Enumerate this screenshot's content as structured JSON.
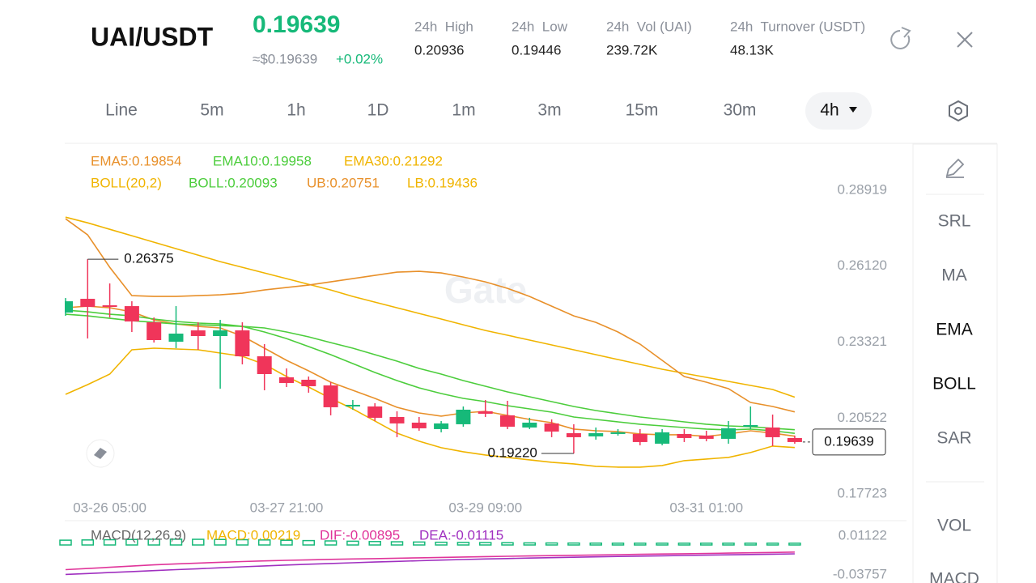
{
  "header": {
    "pair": "UAI/USDT",
    "price": 0.19639,
    "price_fiat": "≈$0.19639",
    "change": "+0.02%",
    "stats": [
      {
        "label": "24h  High",
        "value": 0.20936
      },
      {
        "label": "24h  Low",
        "value": 0.19446
      },
      {
        "label": "24h  Vol (UAI)",
        "value": "239.72K"
      },
      {
        "label": "24h  Turnover (USDT)",
        "value": "48.13K"
      }
    ]
  },
  "tabs": [
    "Line",
    "5m",
    "1h",
    "1D",
    "1m",
    "3m",
    "15m",
    "30m",
    "4h"
  ],
  "side_menu": [
    "SRL",
    "MA",
    "EMA",
    "BOLL",
    "SAR",
    "VOL",
    "MACD"
  ],
  "watermark": "Gate",
  "chart_data": [
    {
      "type": "candlestick",
      "categories": [
        null,
        null,
        "03-26 05:00",
        null,
        null,
        null,
        null,
        null,
        null,
        null,
        "03-27 21:00",
        null,
        null,
        null,
        null,
        null,
        null,
        null,
        null,
        "03-29 09:00",
        null,
        null,
        null,
        null,
        null,
        null,
        null,
        null,
        null,
        "03-31 01:00",
        null,
        null,
        null,
        null
      ],
      "open": [
        0.24408,
        0.24915,
        0.24676,
        0.24646,
        0.2405,
        0.23335,
        0.23752,
        0.23544,
        0.23752,
        0.22798,
        0.22023,
        0.21934,
        0.21726,
        0.2095,
        0.2095,
        0.20563,
        0.20354,
        0.20116,
        0.20295,
        0.20772,
        0.20623,
        0.20175,
        0.20325,
        0.19967,
        0.19848,
        0.19937,
        0.19937,
        0.19579,
        0.19937,
        0.19877,
        0.19758,
        0.20205,
        0.20175,
        0.19788
      ],
      "high": [
        0.24944,
        0.26375,
        0.25481,
        0.24825,
        0.24229,
        0.24646,
        0.2405,
        0.2414,
        0.2405,
        0.23246,
        0.22351,
        0.22053,
        0.21845,
        0.21189,
        0.2107,
        0.20772,
        0.20563,
        0.20414,
        0.2095,
        0.21189,
        0.21159,
        0.20533,
        0.20473,
        0.20295,
        0.20175,
        0.20116,
        0.20116,
        0.20116,
        0.20116,
        0.20056,
        0.20414,
        0.2095,
        0.20652,
        0.19877
      ],
      "low": [
        0.24289,
        0.23454,
        0.24229,
        0.23693,
        0.23305,
        0.23097,
        0.23037,
        0.21606,
        0.225,
        0.21547,
        0.21666,
        0.21457,
        0.20623,
        0.20831,
        0.20414,
        0.19818,
        0.20056,
        0.19997,
        0.20205,
        0.20563,
        0.20116,
        0.20116,
        0.19818,
        {
          "value": 0.1922,
          "label": "0.19220"
        },
        0.19728,
        0.19877,
        0.1952,
        0.1952,
        0.19639,
        0.19669,
        0.19579,
        0.20116,
        0.1949,
        0.19579
      ],
      "close": [
        0.24825,
        0.24617,
        0.24617,
        0.2408,
        0.23395,
        0.23633,
        0.23544,
        0.23752,
        0.22798,
        0.22143,
        0.21815,
        0.21696,
        0.20921,
        0.2101,
        0.20533,
        0.20325,
        0.20146,
        0.20325,
        0.20831,
        0.20682,
        0.20205,
        0.20354,
        0.20026,
        0.19818,
        0.19967,
        0.19997,
        0.19639,
        0.19997,
        0.19788,
        0.19758,
        0.20146,
        0.20265,
        0.19818,
        0.19639
      ],
      "up_color": "#16b979",
      "down_color": "#f0355a",
      "ylim": [
        0.1743,
        0.2936
      ],
      "yticks": [
        0.28919,
        {
          "value": 0.2612,
          "label": "0.26120"
        },
        0.23321,
        0.20522,
        0.17723
      ],
      "legend_title": "BOLL(20,2)",
      "legend_title_color": "#f0b400",
      "series": [
        {
          "name": "EMA5:0.19854",
          "color": "#e8902a",
          "values": [
            0.24586,
            0.24645,
            0.24586,
            0.24437,
            0.24139,
            0.2399,
            0.239,
            0.23841,
            0.23543,
            0.23096,
            0.22649,
            0.22261,
            0.21844,
            0.21546,
            0.21248,
            0.2092,
            0.20712,
            0.20593,
            0.20712,
            0.20771,
            0.20622,
            0.20473,
            0.20354,
            0.20116,
            0.20056,
            0.20026,
            0.19937,
            0.19907,
            0.19907,
            0.19848,
            0.19937,
            0.20056,
            0.19967,
            0.19854
          ]
        },
        {
          "name": "EMA10:0.19958",
          "color": "#4ccd3c",
          "values": [
            0.24496,
            0.24437,
            0.24347,
            0.24288,
            0.24169,
            0.24079,
            0.2402,
            0.2399,
            0.239,
            0.23692,
            0.23453,
            0.23155,
            0.22857,
            0.2253,
            0.22202,
            0.21904,
            0.21636,
            0.21427,
            0.21248,
            0.21129,
            0.2098,
            0.20861,
            0.20742,
            0.20563,
            0.20473,
            0.20384,
            0.20295,
            0.20235,
            0.20175,
            0.20116,
            0.20086,
            0.20116,
            0.20056,
            0.19958
          ]
        },
        {
          "name": "EMA30:0.21292",
          "color": "#f0b400",
          "values": [
            0.27923,
            0.27715,
            0.27476,
            0.27238,
            0.27,
            0.26761,
            0.26523,
            0.26284,
            0.26076,
            0.25867,
            0.25659,
            0.2545,
            0.25241,
            0.25003,
            0.24794,
            0.24586,
            0.24377,
            0.24169,
            0.2396,
            0.23751,
            0.23573,
            0.23394,
            0.23215,
            0.23036,
            0.22857,
            0.22679,
            0.225,
            0.22321,
            0.22172,
            0.22023,
            0.21874,
            0.21725,
            0.21576,
            0.21292
          ]
        },
        {
          "name": "BOLL:0.20093",
          "color": "#4ccd3c",
          "values": [
            0.24347,
            0.24288,
            0.24198,
            0.24109,
            0.24049,
            0.2399,
            0.2396,
            0.2393,
            0.239,
            0.23841,
            0.23692,
            0.23513,
            0.23304,
            0.23096,
            0.22857,
            0.22619,
            0.22351,
            0.22142,
            0.21904,
            0.21695,
            0.21487,
            0.21308,
            0.21129,
            0.2095,
            0.20801,
            0.20682,
            0.20563,
            0.20473,
            0.20384,
            0.20295,
            0.20235,
            0.20205,
            0.20146,
            0.20093
          ]
        },
        {
          "name": "UB:0.20751",
          "color": "#e8902a",
          "values": [
            0.27864,
            0.27268,
            0.26076,
            0.25033,
            0.25003,
            0.25003,
            0.25033,
            0.25063,
            0.25122,
            0.25241,
            0.25331,
            0.2542,
            0.25539,
            0.25659,
            0.25778,
            0.25897,
            0.25927,
            0.25867,
            0.25718,
            0.25539,
            0.25301,
            0.25003,
            0.24645,
            0.24288,
            0.24049,
            0.23692,
            0.23245,
            0.22649,
            0.22053,
            0.21844,
            0.21606,
            0.21099,
            0.2095,
            0.20751
          ]
        },
        {
          "name": "LB:0.19436",
          "color": "#f0b400",
          "values": [
            0.21397,
            0.21755,
            0.22142,
            0.23036,
            0.23096,
            0.23066,
            0.23036,
            0.22917,
            0.22798,
            0.225,
            0.22053,
            0.21665,
            0.21248,
            0.20861,
            0.20414,
            0.19967,
            0.19669,
            0.1943,
            0.19281,
            0.19162,
            0.19073,
            0.18983,
            0.18894,
            0.18834,
            0.18745,
            0.18715,
            0.18715,
            0.18775,
            0.18954,
            0.19013,
            0.19073,
            0.19252,
            0.1949,
            0.19436
          ]
        }
      ]
    },
    {
      "type": "macd",
      "title": "MACD(12,26,9)",
      "ylim": [
        -0.0457,
        0.0234
      ],
      "yticks": [
        0.01122,
        -0.03757
      ],
      "series": [
        {
          "name": "MACD:0.00219",
          "color": "#16b979",
          "values": [
            0.006,
            0.0063,
            0.0066,
            0.0069,
            0.0072,
            0.0072,
            0.0071,
            0.0069,
            0.0066,
            0.0063,
            0.0059,
            0.0055,
            0.0051,
            0.0047,
            0.0043,
            0.004,
            0.0037,
            0.0034,
            0.0032,
            0.003,
            0.0028,
            0.0026,
            0.0025,
            0.0024,
            0.0023,
            0.0022,
            0.0022,
            0.0022,
            0.0022,
            0.0022,
            0.0022,
            0.0022,
            0.0022,
            0.00219
          ]
        },
        {
          "name": "DIF:-0.00895",
          "color": "#e0359a",
          "values": [
            -0.031,
            -0.0295,
            -0.028,
            -0.0265,
            -0.025,
            -0.0238,
            -0.0227,
            -0.0217,
            -0.0208,
            -0.02,
            -0.0193,
            -0.0187,
            -0.0181,
            -0.0176,
            -0.0171,
            -0.0166,
            -0.0161,
            -0.0156,
            -0.0151,
            -0.0146,
            -0.0142,
            -0.0138,
            -0.0134,
            -0.013,
            -0.0126,
            -0.0122,
            -0.0118,
            -0.0114,
            -0.011,
            -0.0106,
            -0.0102,
            -0.0098,
            -0.0094,
            -0.00895
          ]
        },
        {
          "name": "DEA:-0.01115",
          "color": "#a030c0",
          "values": [
            -0.037,
            -0.0358,
            -0.0346,
            -0.0334,
            -0.0322,
            -0.031,
            -0.0298,
            -0.0286,
            -0.0274,
            -0.0263,
            -0.0252,
            -0.0242,
            -0.0232,
            -0.0223,
            -0.0214,
            -0.0206,
            -0.0198,
            -0.019,
            -0.0183,
            -0.0176,
            -0.017,
            -0.0164,
            -0.0159,
            -0.0154,
            -0.0149,
            -0.0144,
            -0.014,
            -0.0136,
            -0.0132,
            -0.0128,
            -0.0124,
            -0.012,
            -0.0116,
            -0.01115
          ]
        }
      ]
    }
  ]
}
